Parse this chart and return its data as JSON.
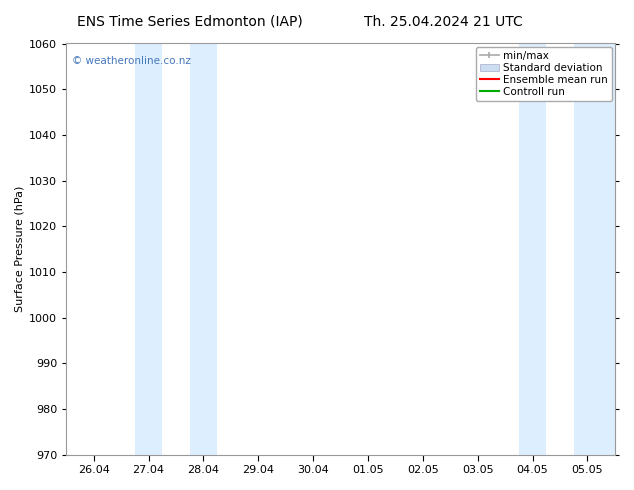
{
  "title_left": "ENS Time Series Edmonton (IAP)",
  "title_right": "Th. 25.04.2024 21 UTC",
  "ylabel": "Surface Pressure (hPa)",
  "ylim": [
    970,
    1060
  ],
  "yticks": [
    970,
    980,
    990,
    1000,
    1010,
    1020,
    1030,
    1040,
    1050,
    1060
  ],
  "xtick_labels": [
    "26.04",
    "27.04",
    "28.04",
    "29.04",
    "30.04",
    "01.05",
    "02.05",
    "03.05",
    "04.05",
    "05.05"
  ],
  "xtick_positions": [
    0,
    1,
    2,
    3,
    4,
    5,
    6,
    7,
    8,
    9
  ],
  "xlim": [
    -0.5,
    9.5
  ],
  "shaded_bands": [
    {
      "x_start": 0.75,
      "x_end": 1.25,
      "color": "#ddeeff"
    },
    {
      "x_start": 1.75,
      "x_end": 2.25,
      "color": "#ddeeff"
    },
    {
      "x_start": 7.75,
      "x_end": 8.25,
      "color": "#ddeeff"
    },
    {
      "x_start": 8.75,
      "x_end": 9.5,
      "color": "#ddeeff"
    }
  ],
  "watermark": "© weatheronline.co.nz",
  "watermark_color": "#4477bb",
  "legend_entries": [
    {
      "label": "min/max",
      "color": "#aaaaaa"
    },
    {
      "label": "Standard deviation",
      "color": "#bbccdd"
    },
    {
      "label": "Ensemble mean run",
      "color": "#ff0000"
    },
    {
      "label": "Controll run",
      "color": "#00aa00"
    }
  ],
  "background_color": "#ffffff",
  "plot_bg_color": "#ffffff",
  "title_fontsize": 10,
  "axis_label_fontsize": 8,
  "tick_fontsize": 8,
  "legend_fontsize": 7.5
}
